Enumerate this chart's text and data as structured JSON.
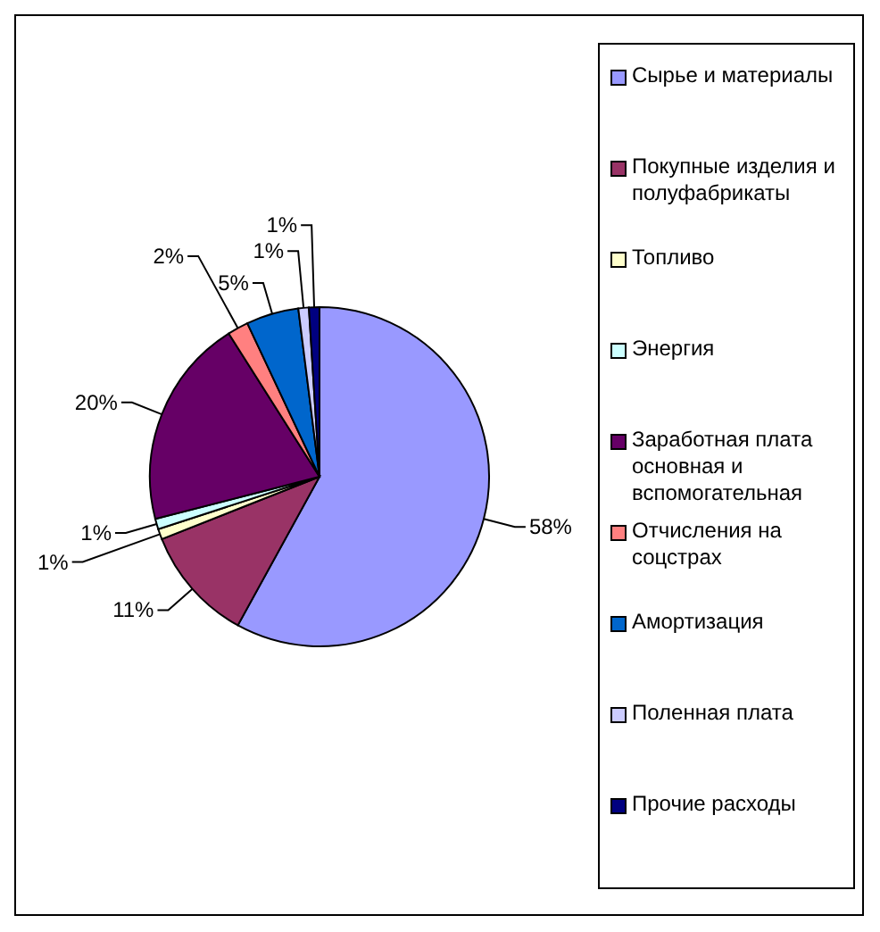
{
  "chart_data": {
    "type": "pie",
    "categories": [
      "Сырье и материалы",
      "Покупные изделия и полуфабрикаты",
      "Топливо",
      "Энергия",
      "Заработная плата основная  и вспомогательная",
      "Отчисления на соцстрах",
      "Амортизация",
      "Поленная плата",
      "Прочие расходы"
    ],
    "values": [
      58,
      11,
      1,
      1,
      20,
      2,
      5,
      1,
      1
    ],
    "value_labels": [
      "58%",
      "11%",
      "1%",
      "1%",
      "20%",
      "2%",
      "5%",
      "1%",
      "1%"
    ],
    "colors": [
      "#9999ff",
      "#993366",
      "#ffffcc",
      "#ccffff",
      "#660066",
      "#ff8080",
      "#0066cc",
      "#ccccff",
      "#000080"
    ],
    "legend": "right"
  }
}
